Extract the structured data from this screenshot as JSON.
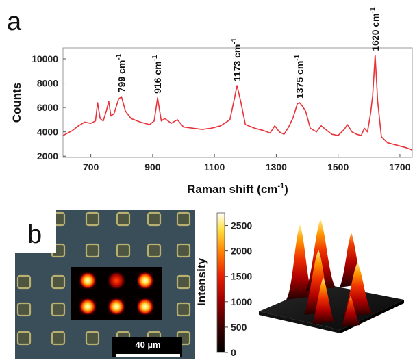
{
  "panels": {
    "a": "a",
    "b": "b"
  },
  "chart_data": [
    {
      "type": "line",
      "xlabel": "Raman shift (cm",
      "xlabel_sup": "-1",
      "xlabel_close": ")",
      "ylabel": "Counts",
      "xlim": [
        610,
        1740
      ],
      "ylim": [
        1900,
        10900
      ],
      "x_ticks": [
        700,
        900,
        1100,
        1300,
        1500,
        1700
      ],
      "y_ticks": [
        2000,
        4000,
        6000,
        8000,
        10000
      ],
      "line_color": "#e8333a",
      "series": [
        {
          "x": [
            610,
            640,
            660,
            680,
            700,
            715,
            722,
            730,
            740,
            750,
            758,
            765,
            775,
            790,
            799,
            812,
            830,
            860,
            890,
            905,
            916,
            928,
            940,
            960,
            980,
            1000,
            1030,
            1060,
            1090,
            1120,
            1150,
            1165,
            1173,
            1185,
            1200,
            1230,
            1260,
            1280,
            1295,
            1310,
            1325,
            1340,
            1355,
            1368,
            1375,
            1385,
            1395,
            1410,
            1430,
            1445,
            1460,
            1480,
            1500,
            1520,
            1530,
            1545,
            1560,
            1575,
            1585,
            1595,
            1605,
            1612,
            1620,
            1628,
            1640,
            1660,
            1690,
            1720,
            1740
          ],
          "y": [
            3700,
            4100,
            4500,
            4800,
            4700,
            4900,
            6400,
            5100,
            4900,
            5700,
            6500,
            5300,
            5500,
            6700,
            6900,
            5700,
            5100,
            4800,
            4600,
            4900,
            6800,
            4900,
            5100,
            4700,
            5000,
            4400,
            4300,
            4200,
            4300,
            4500,
            5000,
            6800,
            7800,
            6500,
            4600,
            4300,
            4100,
            3900,
            4500,
            4000,
            3800,
            4400,
            5200,
            6300,
            6400,
            6100,
            5700,
            4300,
            4000,
            4500,
            4200,
            3800,
            3700,
            4200,
            4600,
            4000,
            3800,
            3700,
            4300,
            4000,
            5500,
            7000,
            10300,
            6500,
            3600,
            3100,
            2900,
            2700,
            2500
          ]
        }
      ],
      "annotations": [
        {
          "label": "799 cm",
          "sup": "-1",
          "x": 799,
          "y": 6900
        },
        {
          "label": "916 cm",
          "sup": "-1",
          "x": 916,
          "y": 6800
        },
        {
          "label": "1173 cm",
          "sup": "-1",
          "x": 1173,
          "y": 7800
        },
        {
          "label": "1375 cm",
          "sup": "-1",
          "x": 1375,
          "y": 6400
        },
        {
          "label": "1620 cm",
          "sup": "-1",
          "x": 1620,
          "y": 10300
        }
      ]
    },
    {
      "type": "heatmap",
      "colorbar_label": "Intensity",
      "colorbar_range": [
        0,
        2750
      ],
      "colorbar_ticks": [
        0,
        500,
        1000,
        1500,
        2000,
        2500
      ],
      "scale_bar": "40 µm",
      "grid_rows": 2,
      "grid_cols": 3,
      "spot_intensity": [
        [
          2500,
          1400,
          2500
        ],
        [
          2500,
          2500,
          2400
        ]
      ]
    }
  ]
}
